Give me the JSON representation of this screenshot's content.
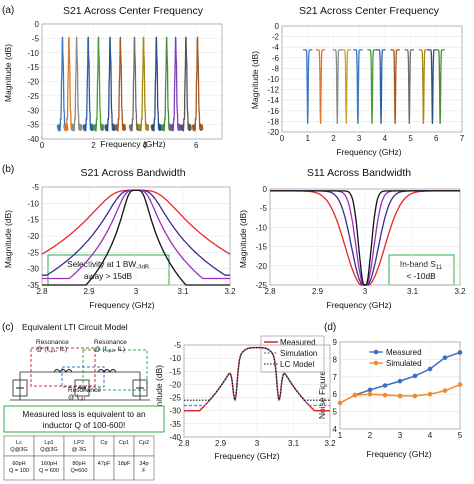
{
  "labels": {
    "a": "(a)",
    "b": "(b)",
    "c": "(c)",
    "d": "(d)"
  },
  "circuit": {
    "title": "Equivalent LTI Circuit Model",
    "res1": [
      "Resonance",
      "@ (f",
      "Lp1",
      ", IL)"
    ],
    "res2": [
      "Resonance",
      "@ (f",
      "Lp2",
      ", IL)"
    ],
    "res3": [
      "Resonance",
      "@ f",
      "Lp1"
    ],
    "loss_note": [
      "Measured loss is equivalent to an",
      "inductor Q of 100-600!"
    ],
    "table": {
      "headers": [
        [
          "L",
          "c"
        ],
        [
          "Q@3G"
        ],
        [
          "Lp1",
          ""
        ],
        [
          "Q@3G"
        ],
        [
          "LP2",
          ""
        ],
        [
          "@ 3G"
        ],
        [
          "Cp"
        ],
        [
          "Cp1"
        ],
        [
          "Cp2"
        ]
      ],
      "h": [
        [
          "Lc",
          "Q@3G"
        ],
        [
          "Lp1",
          "Q@3G"
        ],
        [
          "LP2",
          "@ 3G"
        ],
        [
          "Cp"
        ],
        [
          "Cp1"
        ],
        [
          "Cp2"
        ]
      ],
      "v": [
        [
          "60pH",
          "Q = 100"
        ],
        [
          "160pH",
          "Q = 600"
        ],
        [
          "80pH",
          "Q=600"
        ],
        [
          "47pF"
        ],
        [
          "18pF"
        ],
        [
          "34p",
          "F"
        ]
      ]
    }
  },
  "chart_data": [
    {
      "id": "a-left",
      "type": "line",
      "title": "S21 Across Center Frequency",
      "xlabel": "Frequency (GHz)",
      "ylabel": "Magnitude (dB)",
      "xlim": [
        0,
        7
      ],
      "ylim": [
        -40,
        0
      ],
      "xticks": [
        "0",
        "2",
        "4",
        "6"
      ],
      "yticks": [
        "0",
        "-5",
        "-10",
        "-15",
        "-20",
        "-25",
        "-30",
        "-35",
        "-40"
      ],
      "centers": [
        0.8,
        1.05,
        1.35,
        1.8,
        2.2,
        2.65,
        3.05,
        3.6,
        3.95,
        4.45,
        4.85,
        5.2,
        5.6,
        6.05
      ],
      "colors": [
        "#3b78c4",
        "#e0782a",
        "#8c8c8c",
        "#2c5fa8",
        "#4a9a3a",
        "#2e4f8c",
        "#a9561f",
        "#6e6e6e",
        "#a88810",
        "#2a4f88",
        "#4e8a3e",
        "#7f3fbf",
        "#555555",
        "#a35a24"
      ]
    },
    {
      "id": "a-right",
      "type": "line",
      "title": "S21 Across Center Frequency",
      "xlabel": "Frequency (GHz)",
      "ylabel": "Magnitude (dB)",
      "xlim": [
        0,
        7
      ],
      "ylim": [
        -20,
        0
      ],
      "xticks": [
        "0",
        "1",
        "2",
        "3",
        "4",
        "5",
        "6",
        "7"
      ],
      "yticks": [
        "0",
        "-2",
        "-4",
        "-6",
        "-8",
        "-10",
        "-12",
        "-14",
        "-16",
        "-18",
        "-20"
      ],
      "centers": [
        1.0,
        1.5,
        2.15,
        2.5,
        2.95,
        3.5,
        3.85,
        4.4,
        4.95,
        5.5,
        5.85,
        6.15
      ],
      "colors": [
        "#3b78c4",
        "#e0782a",
        "#8c8c8c",
        "#c9a227",
        "#3b78c4",
        "#4a9a3a",
        "#2c5fa8",
        "#a9561f",
        "#6e6e6e",
        "#a88810",
        "#2a4f88",
        "#4e8a3e"
      ]
    },
    {
      "id": "b-left",
      "type": "line",
      "title": "S21 Across Bandwidth",
      "xlabel": "Frequency (GHz)",
      "ylabel": "Magnitude (dB)",
      "xlim": [
        2.8,
        3.2
      ],
      "ylim": [
        -35,
        -5
      ],
      "xticks": [
        "2.8",
        "2.9",
        "3",
        "3.1",
        "3.2"
      ],
      "yticks": [
        "-5",
        "-10",
        "-15",
        "-20",
        "-25",
        "-30",
        "-35"
      ],
      "series": [
        {
          "color": "#e8262b",
          "bw": 0.13,
          "floor": -28
        },
        {
          "color": "#3f2a90",
          "bw": 0.085,
          "floor": -32
        },
        {
          "color": "#9b2fbf",
          "bw": 0.06,
          "floor": -33
        },
        {
          "color": "#111111",
          "bw": 0.04,
          "floor": -35
        }
      ],
      "annotation": [
        "Selectivity at 1 BW",
        "-3dB",
        "away > 15dB"
      ]
    },
    {
      "id": "b-right",
      "type": "line",
      "title": "S11 Across Bandwidth",
      "xlabel": "Frequency (GHz)",
      "ylabel": "Magnitude (dB)",
      "xlim": [
        2.8,
        3.2
      ],
      "ylim": [
        -25,
        0
      ],
      "xticks": [
        "2.8",
        "2.9",
        "3",
        "3.1",
        "3.2"
      ],
      "yticks": [
        "0",
        "-5",
        "-10",
        "-15",
        "-20",
        "-25"
      ],
      "series": [
        {
          "color": "#e8262b",
          "bw": 0.11
        },
        {
          "color": "#3f2a90",
          "bw": 0.075
        },
        {
          "color": "#9b2fbf",
          "bw": 0.05
        },
        {
          "color": "#111111",
          "bw": 0.035
        }
      ],
      "annotation": [
        "In-band S",
        "11",
        "< -10dB"
      ]
    },
    {
      "id": "c-mid",
      "type": "line",
      "title": "",
      "xlabel": "Frequency (GHz)",
      "ylabel": "Magnitude (dB)",
      "xlim": [
        2.8,
        3.2
      ],
      "ylim": [
        -40,
        -5
      ],
      "xticks": [
        "2.8",
        "2.9",
        "3",
        "3.1",
        "3.2"
      ],
      "yticks": [
        "-5",
        "-10",
        "-15",
        "-20",
        "-25",
        "-30",
        "-35",
        "-40"
      ],
      "legend": [
        "Measured",
        "Simulation",
        "LC Model"
      ],
      "colors": [
        "#e8262b",
        "#3b8fd9",
        "#111111"
      ]
    },
    {
      "id": "d",
      "type": "line",
      "title": "",
      "xlabel": "Frequency (GHz)",
      "ylabel": "Noise Figure",
      "xlim": [
        1,
        5
      ],
      "ylim": [
        4,
        9
      ],
      "xticks": [
        "1",
        "2",
        "3",
        "4",
        "5"
      ],
      "yticks": [
        "4",
        "5",
        "6",
        "7",
        "8",
        "9"
      ],
      "series": [
        {
          "name": "Measured",
          "color": "#3a6fc1",
          "x": [
            1.5,
            2,
            2.5,
            3,
            3.5,
            4,
            4.5,
            5
          ],
          "y": [
            5.95,
            6.25,
            6.5,
            6.75,
            7.05,
            7.45,
            8.1,
            8.4
          ]
        },
        {
          "name": "Simulated",
          "color": "#f08a2a",
          "x": [
            1,
            1.5,
            2,
            2.5,
            3,
            3.5,
            4,
            4.5,
            5
          ],
          "y": [
            5.5,
            5.95,
            6.0,
            5.95,
            5.9,
            5.9,
            6.0,
            6.2,
            6.55
          ]
        }
      ]
    }
  ]
}
